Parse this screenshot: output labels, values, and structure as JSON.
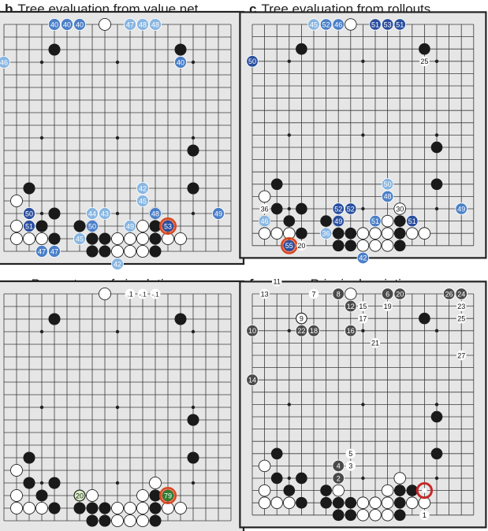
{
  "colors": {
    "board_bg": "#e6e6e6",
    "grid": "#3a3a3a",
    "black_stone": "#1a1a1a",
    "white_stone": "#ffffff",
    "dark_blue": "#2a4f9f",
    "mid_blue": "#4a7fc8",
    "light_blue": "#88b6e2",
    "highlight_ring": "#d9461e",
    "gray_stone": "#4a4a4a",
    "green": "#2e7d32",
    "light_green": "#d9efc4"
  },
  "base": {
    "black": [
      [
        2,
        4
      ],
      [
        2,
        14
      ],
      [
        10,
        15
      ],
      [
        13,
        15
      ],
      [
        13,
        2
      ],
      [
        15,
        2
      ],
      [
        15,
        4
      ],
      [
        16,
        3
      ],
      [
        16,
        6
      ],
      [
        16,
        12
      ],
      [
        16,
        13
      ],
      [
        17,
        4
      ],
      [
        17,
        6
      ],
      [
        17,
        7
      ],
      [
        17,
        8
      ],
      [
        17,
        12
      ],
      [
        18,
        7
      ],
      [
        18,
        8
      ],
      [
        18,
        12
      ]
    ],
    "white": [
      [
        0,
        8
      ],
      [
        14,
        1
      ],
      [
        15,
        12
      ],
      [
        16,
        1
      ],
      [
        16,
        7
      ],
      [
        16,
        11
      ],
      [
        17,
        1
      ],
      [
        17,
        2
      ],
      [
        17,
        3
      ],
      [
        17,
        9
      ],
      [
        17,
        10
      ],
      [
        17,
        11
      ],
      [
        17,
        13
      ],
      [
        17,
        14
      ],
      [
        18,
        9
      ],
      [
        18,
        10
      ],
      [
        18,
        11
      ]
    ]
  },
  "panels": [
    {
      "letter": "b",
      "title": "Tree evaluation from value net",
      "marks": [
        {
          "r": 0,
          "c": 4,
          "t": "40",
          "k": "m"
        },
        {
          "r": 0,
          "c": 5,
          "t": "40",
          "k": "m"
        },
        {
          "r": 0,
          "c": 6,
          "t": "40",
          "k": "m"
        },
        {
          "r": 0,
          "c": 10,
          "t": "47",
          "k": "l"
        },
        {
          "r": 0,
          "c": 11,
          "t": "48",
          "k": "l"
        },
        {
          "r": 0,
          "c": 12,
          "t": "48",
          "k": "l"
        },
        {
          "r": 3,
          "c": 0,
          "t": "46",
          "k": "l"
        },
        {
          "r": 3,
          "c": 14,
          "t": "40",
          "k": "m"
        },
        {
          "r": 13,
          "c": 11,
          "t": "42",
          "k": "l"
        },
        {
          "r": 14,
          "c": 11,
          "t": "45",
          "k": "l"
        },
        {
          "r": 15,
          "c": 2,
          "t": "50",
          "k": "d"
        },
        {
          "r": 15,
          "c": 7,
          "t": "44",
          "k": "l"
        },
        {
          "r": 15,
          "c": 8,
          "t": "43",
          "k": "l"
        },
        {
          "r": 15,
          "c": 12,
          "t": "48",
          "k": "m"
        },
        {
          "r": 15,
          "c": 17,
          "t": "49",
          "k": "m"
        },
        {
          "r": 16,
          "c": 2,
          "t": "51",
          "k": "d"
        },
        {
          "r": 16,
          "c": 7,
          "t": "50",
          "k": "m"
        },
        {
          "r": 16,
          "c": 10,
          "t": "49",
          "k": "l"
        },
        {
          "r": 16,
          "c": 13,
          "t": "53",
          "k": "dr"
        },
        {
          "r": 17,
          "c": 6,
          "t": "45",
          "k": "l"
        },
        {
          "r": 18,
          "c": 3,
          "t": "47",
          "k": "m"
        },
        {
          "r": 18,
          "c": 4,
          "t": "47",
          "k": "m"
        },
        {
          "r": 19,
          "c": 9,
          "t": "42",
          "k": "l"
        }
      ]
    },
    {
      "letter": "c",
      "title": "Tree evaluation from rollouts",
      "marks": [
        {
          "r": 0,
          "c": 5,
          "t": "45",
          "k": "l"
        },
        {
          "r": 0,
          "c": 6,
          "t": "52",
          "k": "m"
        },
        {
          "r": 0,
          "c": 7,
          "t": "46",
          "k": "m"
        },
        {
          "r": 0,
          "c": 10,
          "t": "51",
          "k": "d"
        },
        {
          "r": 0,
          "c": 11,
          "t": "53",
          "k": "d"
        },
        {
          "r": 0,
          "c": 12,
          "t": "51",
          "k": "d"
        },
        {
          "r": 3,
          "c": 0,
          "t": "50",
          "k": "d"
        },
        {
          "r": 3,
          "c": 14,
          "t": "25",
          "k": "w"
        },
        {
          "r": 13,
          "c": 11,
          "t": "50",
          "k": "l"
        },
        {
          "r": 14,
          "c": 11,
          "t": "48",
          "k": "m"
        },
        {
          "r": 15,
          "c": 1,
          "t": "36",
          "k": "w"
        },
        {
          "r": 15,
          "c": 7,
          "t": "52",
          "k": "d"
        },
        {
          "r": 15,
          "c": 8,
          "t": "52",
          "k": "d"
        },
        {
          "r": 15,
          "c": 12,
          "t": "30",
          "k": "w"
        },
        {
          "r": 15,
          "c": 17,
          "t": "49",
          "k": "m"
        },
        {
          "r": 16,
          "c": 1,
          "t": "46",
          "k": "l"
        },
        {
          "r": 16,
          "c": 7,
          "t": "49",
          "k": "d"
        },
        {
          "r": 16,
          "c": 10,
          "t": "51",
          "k": "m"
        },
        {
          "r": 16,
          "c": 13,
          "t": "51",
          "k": "d"
        },
        {
          "r": 17,
          "c": 6,
          "t": "36",
          "k": "l"
        },
        {
          "r": 18,
          "c": 3,
          "t": "55",
          "k": "dr"
        },
        {
          "r": 18,
          "c": 4,
          "t": "20",
          "k": "w"
        },
        {
          "r": 19,
          "c": 9,
          "t": "42",
          "k": "m"
        }
      ]
    },
    {
      "letter": "e",
      "title": "Percentage of simulations",
      "marks": [
        {
          "r": 0,
          "c": 10,
          "t": ".1",
          "k": "w"
        },
        {
          "r": 0,
          "c": 11,
          "t": "-.1",
          "k": "w"
        },
        {
          "r": 0,
          "c": 12,
          "t": "-.1",
          "k": "w"
        },
        {
          "r": 16,
          "c": 6,
          "t": "20",
          "k": "lg"
        },
        {
          "r": 16,
          "c": 13,
          "t": "79",
          "k": "gr"
        }
      ]
    },
    {
      "letter": "f",
      "title": "Principal variation",
      "marks": [
        {
          "r": -1,
          "c": 2,
          "t": "11",
          "k": "w"
        },
        {
          "r": 0,
          "c": 1,
          "t": "13",
          "k": "w"
        },
        {
          "r": 0,
          "c": 5,
          "t": "7",
          "k": "w"
        },
        {
          "r": 0,
          "c": 7,
          "t": "8",
          "k": "g"
        },
        {
          "r": 0,
          "c": 11,
          "t": "6",
          "k": "g"
        },
        {
          "r": 0,
          "c": 12,
          "t": "20",
          "k": "g"
        },
        {
          "r": 0,
          "c": 16,
          "t": "26",
          "k": "g"
        },
        {
          "r": 0,
          "c": 17,
          "t": "24",
          "k": "g"
        },
        {
          "r": 1,
          "c": 8,
          "t": "12",
          "k": "g"
        },
        {
          "r": 1,
          "c": 9,
          "t": "15",
          "k": "w"
        },
        {
          "r": 1,
          "c": 11,
          "t": "19",
          "k": "w"
        },
        {
          "r": 1,
          "c": 17,
          "t": "23",
          "k": "w"
        },
        {
          "r": 2,
          "c": 4,
          "t": "9",
          "k": "w"
        },
        {
          "r": 2,
          "c": 9,
          "t": "17",
          "k": "w"
        },
        {
          "r": 2,
          "c": 17,
          "t": "25",
          "k": "w"
        },
        {
          "r": 3,
          "c": 0,
          "t": "10",
          "k": "g"
        },
        {
          "r": 3,
          "c": 4,
          "t": "22",
          "k": "g"
        },
        {
          "r": 3,
          "c": 5,
          "t": "18",
          "k": "g"
        },
        {
          "r": 3,
          "c": 8,
          "t": "16",
          "k": "g"
        },
        {
          "r": 4,
          "c": 10,
          "t": "21",
          "k": "w"
        },
        {
          "r": 5,
          "c": 17,
          "t": "27",
          "k": "w"
        },
        {
          "r": 7,
          "c": 0,
          "t": "14",
          "k": "g"
        },
        {
          "r": 13,
          "c": 8,
          "t": "5",
          "k": "w"
        },
        {
          "r": 14,
          "c": 7,
          "t": "4",
          "k": "g"
        },
        {
          "r": 14,
          "c": 8,
          "t": "3",
          "k": "w"
        },
        {
          "r": 15,
          "c": 7,
          "t": "2",
          "k": "g"
        },
        {
          "r": 18,
          "c": 14,
          "t": "1",
          "k": "w"
        }
      ],
      "ring": {
        "r": 16,
        "c": 14
      }
    }
  ]
}
